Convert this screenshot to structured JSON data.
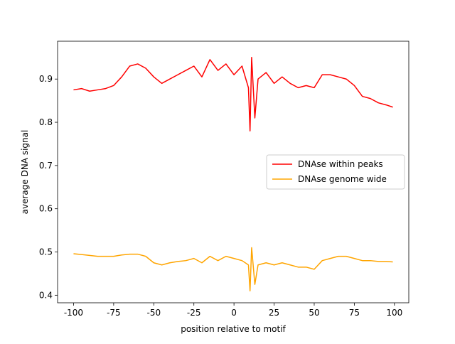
{
  "chart_data": {
    "type": "line",
    "xlabel": "position relative to motif",
    "ylabel": "average DNA signal",
    "x": [
      -100,
      -95,
      -90,
      -85,
      -80,
      -75,
      -70,
      -65,
      -60,
      -55,
      -50,
      -45,
      -40,
      -35,
      -30,
      -25,
      -20,
      -15,
      -10,
      -5,
      0,
      5,
      9,
      10,
      11,
      13,
      15,
      20,
      25,
      30,
      35,
      40,
      45,
      50,
      55,
      60,
      65,
      70,
      75,
      80,
      85,
      90,
      95,
      99
    ],
    "series": [
      {
        "name": "DNAse within peaks",
        "color": "#ff0000",
        "values": [
          0.875,
          0.878,
          0.872,
          0.875,
          0.878,
          0.885,
          0.905,
          0.93,
          0.935,
          0.925,
          0.905,
          0.89,
          0.9,
          0.91,
          0.92,
          0.93,
          0.905,
          0.945,
          0.92,
          0.935,
          0.91,
          0.93,
          0.88,
          0.78,
          0.95,
          0.81,
          0.9,
          0.915,
          0.89,
          0.905,
          0.89,
          0.88,
          0.885,
          0.88,
          0.91,
          0.91,
          0.905,
          0.9,
          0.885,
          0.86,
          0.855,
          0.845,
          0.84,
          0.835
        ]
      },
      {
        "name": "DNAse genome wide",
        "color": "#ffa500",
        "values": [
          0.496,
          0.494,
          0.492,
          0.49,
          0.49,
          0.49,
          0.493,
          0.495,
          0.495,
          0.49,
          0.475,
          0.47,
          0.475,
          0.478,
          0.48,
          0.485,
          0.475,
          0.49,
          0.48,
          0.49,
          0.485,
          0.48,
          0.47,
          0.41,
          0.51,
          0.425,
          0.47,
          0.475,
          0.47,
          0.475,
          0.47,
          0.465,
          0.465,
          0.46,
          0.48,
          0.485,
          0.49,
          0.49,
          0.485,
          0.48,
          0.48,
          0.478,
          0.478,
          0.477
        ]
      }
    ],
    "xlim": [
      -109.95,
      108.95
    ],
    "ylim": [
      0.3825,
      0.9875
    ],
    "xticks": [
      -100,
      -75,
      -50,
      -25,
      0,
      25,
      50,
      75,
      100
    ],
    "yticks": [
      0.4,
      0.5,
      0.6,
      0.7,
      0.8,
      0.9
    ],
    "legend": "center right"
  }
}
